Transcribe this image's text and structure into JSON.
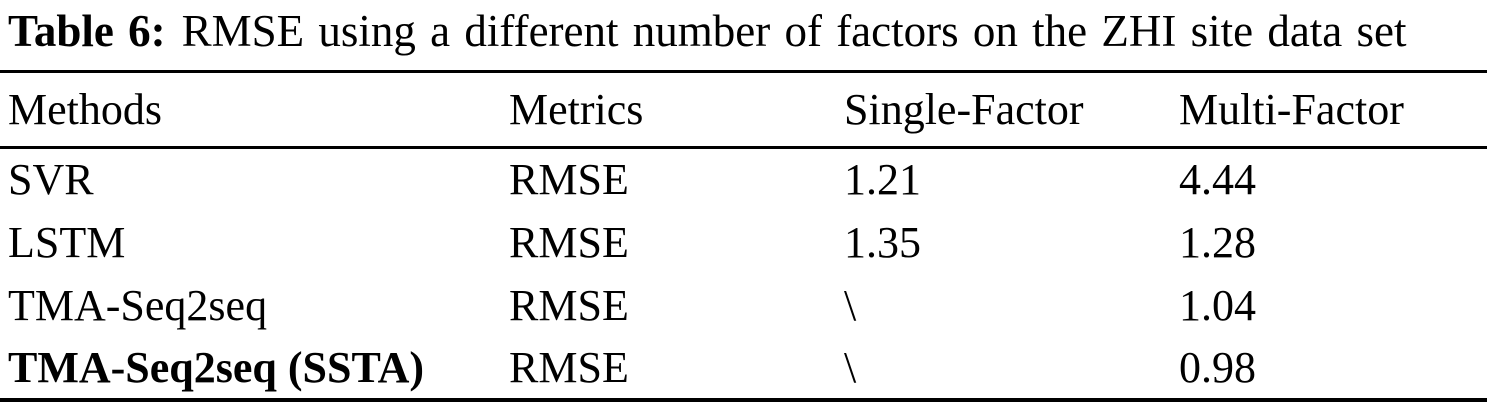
{
  "caption": {
    "label": "Table 6:",
    "text": "RMSE using a different number of factors on the ZHI site data set"
  },
  "table": {
    "columns": [
      "Methods",
      "Metrics",
      "Single-Factor",
      "Multi-Factor"
    ],
    "rows": [
      {
        "method": "SVR",
        "metric": "RMSE",
        "single_factor": "1.21",
        "multi_factor": "4.44"
      },
      {
        "method": "LSTM",
        "metric": "RMSE",
        "single_factor": "1.35",
        "multi_factor": "1.28"
      },
      {
        "method": "TMA-Seq2seq",
        "metric": "RMSE",
        "single_factor": "\\",
        "multi_factor": "1.04"
      },
      {
        "method": "TMA-Seq2seq (SSTA)",
        "metric": "RMSE",
        "single_factor": "\\",
        "multi_factor": "0.98"
      }
    ]
  },
  "colors": {
    "text": "#000000",
    "background": "#ffffff",
    "rule": "#000000"
  }
}
